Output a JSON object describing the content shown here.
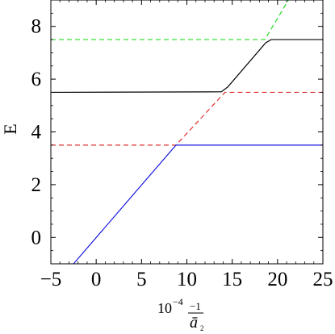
{
  "chart_data": {
    "type": "line",
    "xlabel": {
      "prefix": "10",
      "exponent": "−4",
      "numerator": "−1",
      "denominator": "ā",
      "denominator_subscript": "2"
    },
    "ylabel": "E",
    "xlim": [
      -5,
      25
    ],
    "ylim": [
      -1,
      9
    ],
    "x_ticks": [
      -5,
      0,
      5,
      10,
      15,
      20,
      25
    ],
    "x_tick_labels": [
      "−5",
      "0",
      "5",
      "10",
      "15",
      "20",
      "25"
    ],
    "y_ticks": [
      0,
      2,
      4,
      6,
      8
    ],
    "y_tick_labels": [
      "0",
      "2",
      "4",
      "6",
      "8"
    ],
    "grid": false,
    "legend": false,
    "series": [
      {
        "style": "dashed",
        "color": "#e03030",
        "points": [
          [
            -5,
            3.5
          ],
          [
            8.8,
            3.5
          ],
          [
            14.2,
            5.5
          ],
          [
            25,
            5.5
          ]
        ]
      },
      {
        "style": "dashed",
        "color": "#22dd22",
        "points": [
          [
            -5,
            7.5
          ],
          [
            18.6,
            7.5
          ],
          [
            21.2,
            9.0
          ]
        ]
      },
      {
        "style": "solid",
        "color": "#1a1ae0",
        "points": [
          [
            -2.5,
            -1.0
          ],
          [
            8.8,
            3.5
          ],
          [
            25,
            3.5
          ]
        ]
      },
      {
        "style": "solid",
        "color": "#000000",
        "points": [
          [
            -5,
            5.5
          ],
          [
            13.8,
            5.52
          ],
          [
            14.5,
            5.7
          ],
          [
            18.7,
            7.38
          ],
          [
            19.3,
            7.5
          ],
          [
            25,
            7.5
          ]
        ]
      }
    ]
  }
}
